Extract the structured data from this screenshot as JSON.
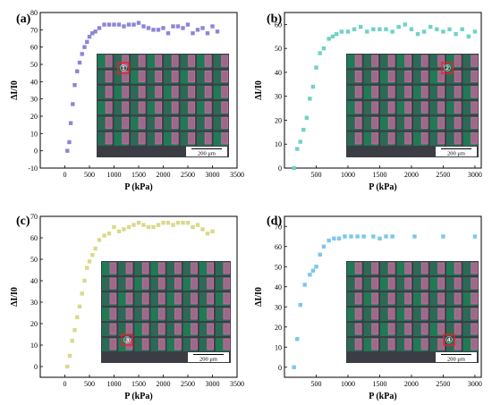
{
  "figure": {
    "panels": [
      "(a)",
      "(b)",
      "(c)",
      "(d)"
    ],
    "xlabel": "P (kPa)",
    "ylabel": "ΔI/I0",
    "inset_markers": [
      "①",
      "②",
      "③",
      "④"
    ],
    "scale_bar_text": "200 μm"
  },
  "colors": {
    "a": "#8c86d8",
    "b": "#6fd2c6",
    "c": "#d9d98a",
    "d": "#7cc8ea",
    "marker_ring": "#e8222a"
  },
  "chart_data": [
    {
      "type": "scatter",
      "panel": "(a)",
      "xlabel": "P (kPa)",
      "ylabel": "ΔI/I0",
      "xlim": [
        -500,
        3500
      ],
      "ylim": [
        -10,
        80
      ],
      "xticks": [
        0,
        500,
        1000,
        1500,
        2000,
        2500,
        3000,
        3500
      ],
      "yticks": [
        -10,
        0,
        10,
        20,
        30,
        40,
        50,
        60,
        70,
        80
      ],
      "series": [
        {
          "x": [
            50,
            90,
            120,
            160,
            200,
            250,
            300,
            350,
            400,
            450,
            500,
            560,
            620,
            700,
            800,
            900,
            1000,
            1100,
            1200,
            1300,
            1400,
            1500,
            1600,
            1700,
            1800,
            1900,
            2000,
            2100,
            2200,
            2300,
            2400,
            2500,
            2600,
            2700,
            2800,
            2900,
            3000,
            3100
          ],
          "y": [
            0,
            5,
            16,
            27,
            38,
            46,
            51,
            56,
            60,
            63,
            66,
            68,
            69,
            71,
            73,
            73,
            73,
            73,
            72,
            73,
            73,
            74,
            72,
            71,
            70,
            70,
            71,
            68,
            72,
            72,
            71,
            73,
            68,
            70,
            71,
            68,
            72,
            69
          ]
        }
      ]
    },
    {
      "type": "scatter",
      "panel": "(b)",
      "xlabel": "P (kPa)",
      "ylabel": "ΔI/I0",
      "xlim": [
        0,
        3100
      ],
      "ylim": [
        0,
        65
      ],
      "xticks": [
        500,
        1000,
        1500,
        2000,
        2500,
        3000
      ],
      "yticks": [
        0,
        10,
        20,
        30,
        40,
        50,
        60
      ],
      "series": [
        {
          "x": [
            150,
            200,
            250,
            300,
            350,
            400,
            450,
            500,
            560,
            620,
            700,
            760,
            820,
            900,
            1000,
            1100,
            1200,
            1300,
            1400,
            1500,
            1600,
            1700,
            1800,
            1900,
            2000,
            2100,
            2200,
            2300,
            2400,
            2500,
            2600,
            2700,
            2800,
            2900,
            3000
          ],
          "y": [
            0,
            8,
            11,
            16,
            21,
            29,
            34,
            42,
            48,
            50,
            54,
            55,
            56,
            57,
            57,
            58,
            59,
            57,
            58,
            58,
            58,
            57,
            59,
            60,
            58,
            56,
            57,
            59,
            58,
            57,
            58,
            56,
            58,
            55,
            57
          ]
        }
      ]
    },
    {
      "type": "scatter",
      "panel": "(c)",
      "xlabel": "P (kPa)",
      "ylabel": "ΔI/I0",
      "xlim": [
        -500,
        3500
      ],
      "ylim": [
        -5,
        70
      ],
      "xticks": [
        0,
        500,
        1000,
        1500,
        2000,
        2500,
        3000,
        3500
      ],
      "yticks": [
        0,
        10,
        20,
        30,
        40,
        50,
        60,
        70
      ],
      "series": [
        {
          "x": [
            50,
            100,
            150,
            200,
            250,
            300,
            350,
            400,
            450,
            500,
            560,
            620,
            700,
            800,
            900,
            1000,
            1100,
            1200,
            1300,
            1400,
            1500,
            1600,
            1700,
            1800,
            1900,
            2000,
            2100,
            2200,
            2300,
            2400,
            2500,
            2600,
            2700,
            2800,
            2900,
            3000
          ],
          "y": [
            0,
            5,
            12,
            17,
            23,
            28,
            34,
            40,
            46,
            49,
            52,
            55,
            59,
            61,
            62,
            65,
            63,
            64,
            65,
            66,
            67,
            66,
            65,
            65,
            66,
            67,
            67,
            66,
            67,
            67,
            67,
            65,
            66,
            64,
            62,
            63
          ]
        }
      ]
    },
    {
      "type": "scatter",
      "panel": "(d)",
      "xlabel": "P (kPa)",
      "ylabel": "ΔI/I0",
      "xlim": [
        0,
        3100
      ],
      "ylim": [
        -5,
        75
      ],
      "xticks": [
        500,
        1000,
        1500,
        2000,
        2500,
        3000
      ],
      "yticks": [
        0,
        10,
        20,
        30,
        40,
        50,
        60,
        70
      ],
      "series": [
        {
          "x": [
            150,
            200,
            250,
            320,
            400,
            450,
            500,
            560,
            620,
            700,
            780,
            860,
            950,
            1050,
            1150,
            1250,
            1400,
            1500,
            1600,
            1700,
            2050,
            2500,
            3000
          ],
          "y": [
            0,
            14,
            31,
            41,
            46,
            48,
            50,
            56,
            60,
            63,
            64,
            64,
            65,
            65,
            65,
            65,
            65,
            64,
            65,
            65,
            65,
            65,
            65
          ]
        }
      ]
    }
  ]
}
